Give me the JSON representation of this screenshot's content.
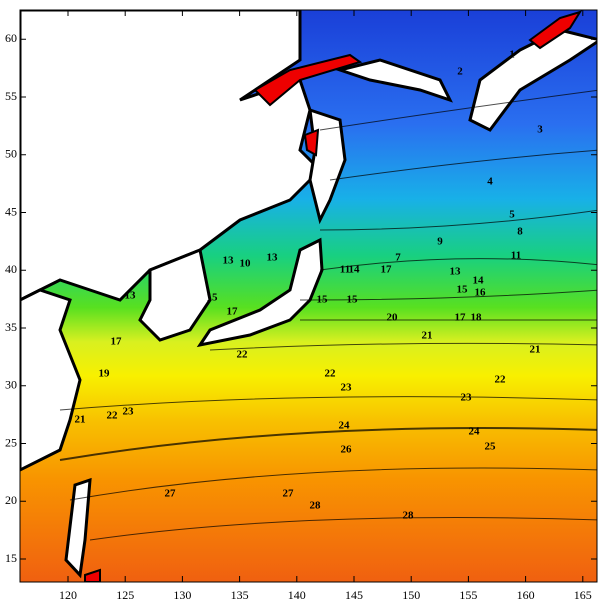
{
  "map": {
    "xticks": [
      120,
      125,
      130,
      135,
      140,
      145,
      150,
      155,
      160,
      165
    ],
    "yticks": [
      15,
      20,
      25,
      30,
      35,
      40,
      45,
      50,
      55,
      60
    ],
    "contour_labels": [
      1,
      2,
      3,
      4,
      5,
      8,
      11,
      13,
      14,
      15,
      16,
      17,
      18,
      21,
      21,
      22,
      23,
      24,
      25,
      20,
      22,
      23,
      24,
      26,
      27,
      27,
      28,
      28,
      10,
      13,
      13,
      17,
      15,
      22,
      13,
      17,
      19,
      21,
      22,
      23,
      11,
      14,
      17,
      15,
      15,
      7,
      9
    ]
  }
}
